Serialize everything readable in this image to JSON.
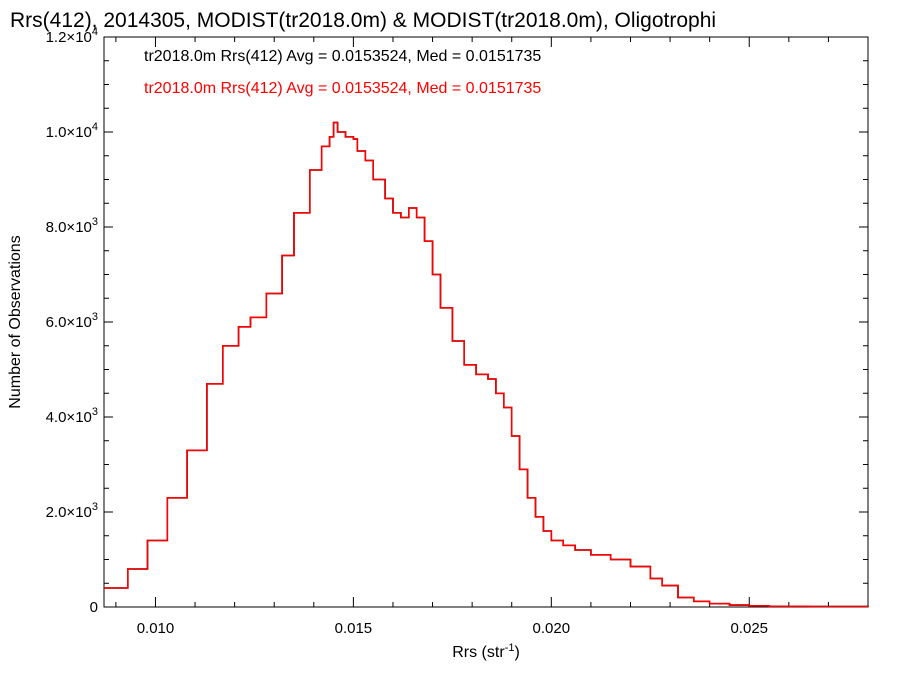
{
  "chart_data": {
    "type": "line",
    "title": "Rrs(412), 2014305, MODIST(tr2018.0m) & MODIST(tr2018.0m), Oligotrophi",
    "xlabel": {
      "base": "Rrs (str",
      "sup": "-1",
      "tail": ")"
    },
    "ylabel": "Number of Observations",
    "xlim": [
      0.0087,
      0.028
    ],
    "ylim": [
      0,
      12000
    ],
    "x_ticks": [
      {
        "value": 0.01,
        "label": "0.010"
      },
      {
        "value": 0.015,
        "label": "0.015"
      },
      {
        "value": 0.02,
        "label": "0.020"
      },
      {
        "value": 0.025,
        "label": "0.025"
      }
    ],
    "y_ticks": [
      {
        "value": 0,
        "mant": "0",
        "exp": ""
      },
      {
        "value": 2000,
        "mant": "2.0×10",
        "exp": "3"
      },
      {
        "value": 4000,
        "mant": "4.0×10",
        "exp": "3"
      },
      {
        "value": 6000,
        "mant": "6.0×10",
        "exp": "3"
      },
      {
        "value": 8000,
        "mant": "8.0×10",
        "exp": "3"
      },
      {
        "value": 10000,
        "mant": "1.0×10",
        "exp": "4"
      },
      {
        "value": 12000,
        "mant": "1.2×10",
        "exp": "4"
      }
    ],
    "annotations": [
      {
        "text": "tr2018.0m Rrs(412) Avg = 0.0153524, Med = 0.0151735",
        "color": "#000000"
      },
      {
        "text": "tr2018.0m Rrs(412) Avg = 0.0153524, Med = 0.0151735",
        "color": "#ff0000"
      }
    ],
    "series": [
      {
        "color": "#000000",
        "x": [
          0.0087,
          0.0093,
          0.0098,
          0.0103,
          0.0108,
          0.0113,
          0.0117,
          0.0121,
          0.0124,
          0.0128,
          0.0132,
          0.0135,
          0.0139,
          0.0142,
          0.0144,
          0.0145,
          0.0146,
          0.0148,
          0.015,
          0.0151,
          0.0153,
          0.0155,
          0.0158,
          0.016,
          0.0162,
          0.0164,
          0.0166,
          0.0168,
          0.017,
          0.0172,
          0.0175,
          0.0178,
          0.0181,
          0.0184,
          0.0186,
          0.0188,
          0.019,
          0.0192,
          0.0194,
          0.0196,
          0.0198,
          0.02,
          0.0203,
          0.0206,
          0.021,
          0.0215,
          0.022,
          0.0225,
          0.0228,
          0.0232,
          0.0236,
          0.024,
          0.0245,
          0.025,
          0.0255,
          0.0265,
          0.028
        ],
        "y": [
          400,
          800,
          1400,
          2300,
          3300,
          4700,
          5500,
          5900,
          6100,
          6600,
          7400,
          8300,
          9200,
          9700,
          9900,
          10200,
          10000,
          9900,
          9850,
          9600,
          9400,
          9000,
          8600,
          8300,
          8200,
          8400,
          8200,
          7700,
          7000,
          6300,
          5600,
          5100,
          4900,
          4800,
          4500,
          4200,
          3600,
          2900,
          2300,
          1900,
          1600,
          1400,
          1300,
          1200,
          1100,
          1000,
          850,
          600,
          450,
          200,
          120,
          70,
          40,
          25,
          15,
          10,
          5
        ]
      },
      {
        "color": "#ff0000",
        "x": [
          0.0087,
          0.0093,
          0.0098,
          0.0103,
          0.0108,
          0.0113,
          0.0117,
          0.0121,
          0.0124,
          0.0128,
          0.0132,
          0.0135,
          0.0139,
          0.0142,
          0.0144,
          0.0145,
          0.0146,
          0.0148,
          0.015,
          0.0151,
          0.0153,
          0.0155,
          0.0158,
          0.016,
          0.0162,
          0.0164,
          0.0166,
          0.0168,
          0.017,
          0.0172,
          0.0175,
          0.0178,
          0.0181,
          0.0184,
          0.0186,
          0.0188,
          0.019,
          0.0192,
          0.0194,
          0.0196,
          0.0198,
          0.02,
          0.0203,
          0.0206,
          0.021,
          0.0215,
          0.022,
          0.0225,
          0.0228,
          0.0232,
          0.0236,
          0.024,
          0.0245,
          0.025,
          0.0255,
          0.0265,
          0.028
        ],
        "y": [
          400,
          800,
          1400,
          2300,
          3300,
          4700,
          5500,
          5900,
          6100,
          6600,
          7400,
          8300,
          9200,
          9700,
          9900,
          10200,
          10000,
          9900,
          9850,
          9600,
          9400,
          9000,
          8600,
          8300,
          8200,
          8400,
          8200,
          7700,
          7000,
          6300,
          5600,
          5100,
          4900,
          4800,
          4500,
          4200,
          3600,
          2900,
          2300,
          1900,
          1600,
          1400,
          1300,
          1200,
          1100,
          1000,
          850,
          600,
          450,
          200,
          120,
          70,
          40,
          25,
          15,
          10,
          5
        ]
      }
    ]
  }
}
